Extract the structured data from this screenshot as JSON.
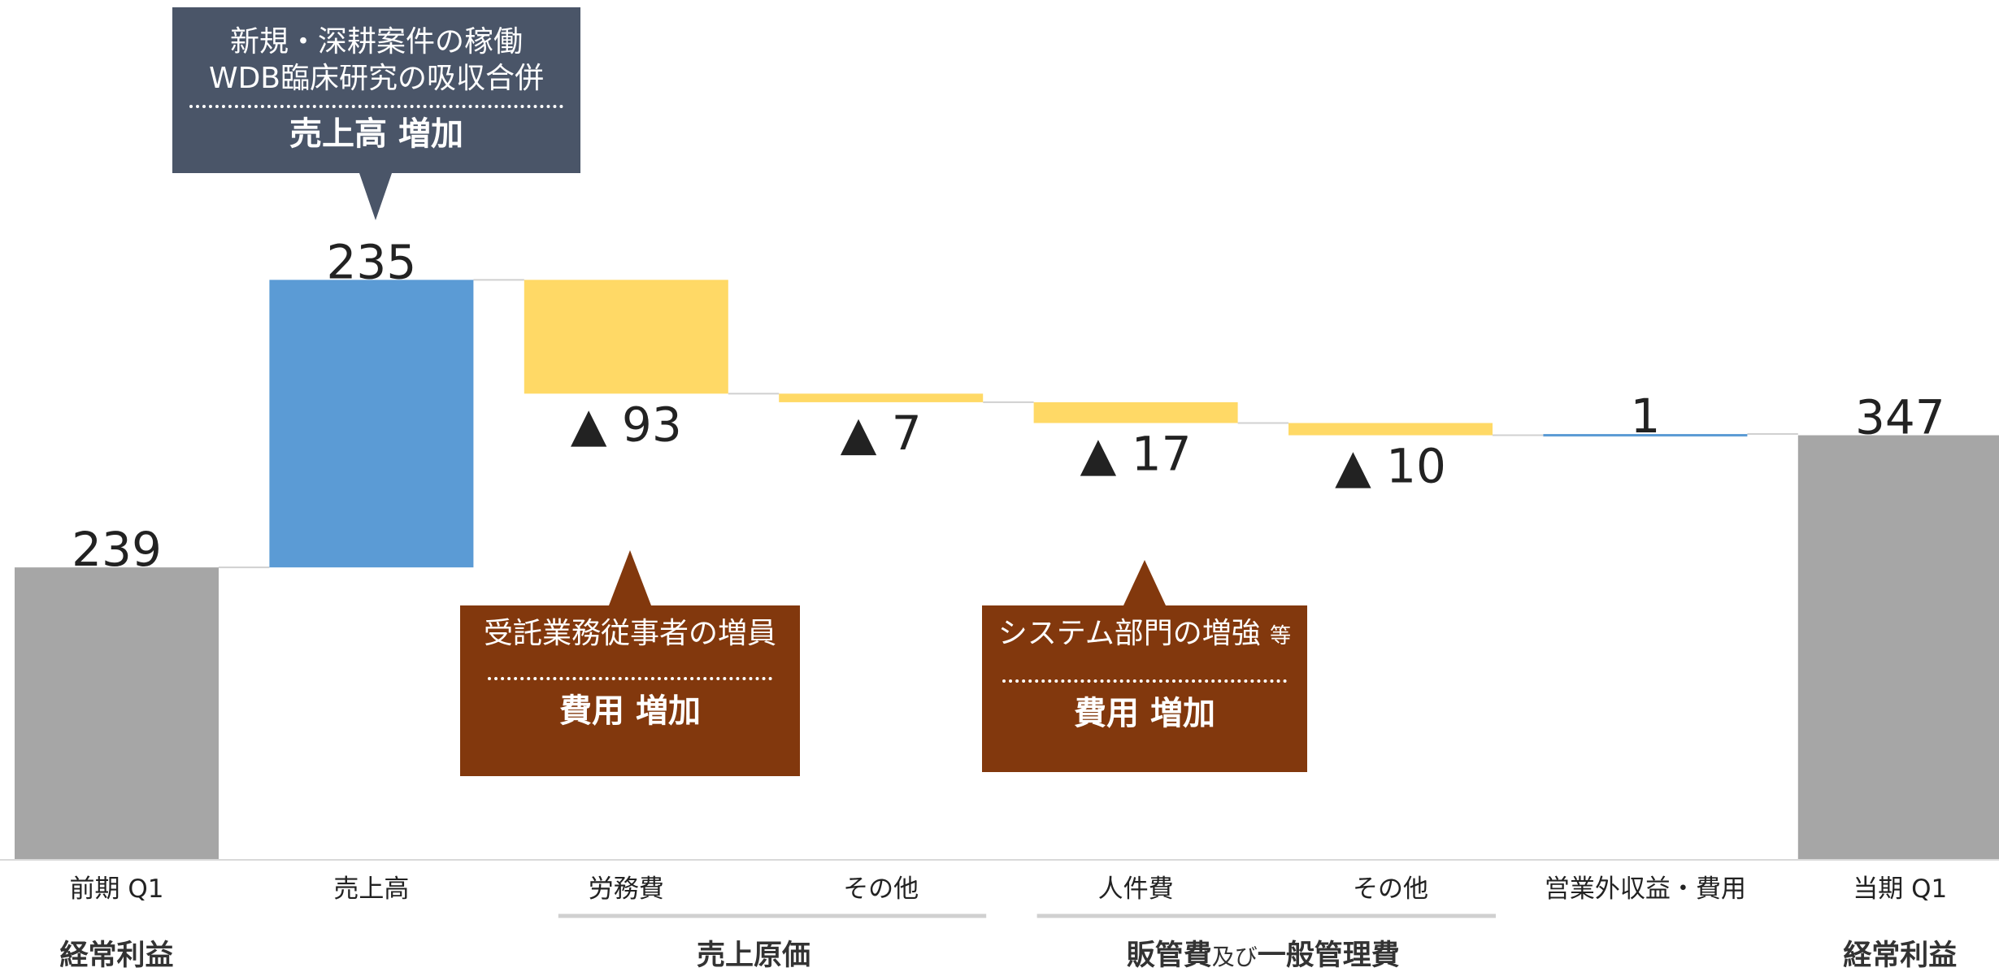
{
  "chart_data": {
    "type": "waterfall",
    "unit": "",
    "bars": [
      {
        "category": "前期 Q1",
        "kind": "total",
        "value": 239,
        "label": "239",
        "color": "#a6a6a6"
      },
      {
        "category": "売上高",
        "kind": "increase",
        "value": 235,
        "label": "235",
        "color": "#5b9bd5"
      },
      {
        "category": "労務費",
        "kind": "decrease",
        "value": -93,
        "label": "▲ 93",
        "color": "#ffd966"
      },
      {
        "category": "その他",
        "kind": "decrease",
        "value": -7,
        "label": "▲ 7",
        "color": "#ffd966"
      },
      {
        "category": "人件費",
        "kind": "decrease",
        "value": -17,
        "label": "▲ 17",
        "color": "#ffd966"
      },
      {
        "category": "その他",
        "kind": "decrease",
        "value": -10,
        "label": "▲ 10",
        "color": "#ffd966"
      },
      {
        "category": "営業外収益・費用",
        "kind": "increase",
        "value": 1,
        "label": "1",
        "color": "#5b9bd5"
      },
      {
        "category": "当期 Q1",
        "kind": "total",
        "value": 347,
        "label": "347",
        "color": "#a6a6a6"
      }
    ],
    "groups": [
      {
        "label": "経常利益",
        "from": 0,
        "to": 0,
        "underline": false
      },
      {
        "label": "売上原価",
        "from": 2,
        "to": 3,
        "underline": true
      },
      {
        "label_main": "販管費",
        "label_small": "及び",
        "label_tail": "一般管理費",
        "from": 4,
        "to": 5,
        "underline": true
      },
      {
        "label": "経常利益",
        "from": 7,
        "to": 7,
        "underline": false
      }
    ],
    "ylim": [
      0,
      560
    ],
    "grid": false,
    "legend": "none"
  },
  "callouts": {
    "sales": {
      "line1": "新規・深耕案件の稼働",
      "line2": "WDB臨床研究の吸収合併",
      "head": "売上高 増加"
    },
    "labor": {
      "line1": "受託業務従事者の増員",
      "head": "費用 増加"
    },
    "system": {
      "line1": "システム部門の増強",
      "suffix": "等",
      "head": "費用 増加"
    }
  }
}
